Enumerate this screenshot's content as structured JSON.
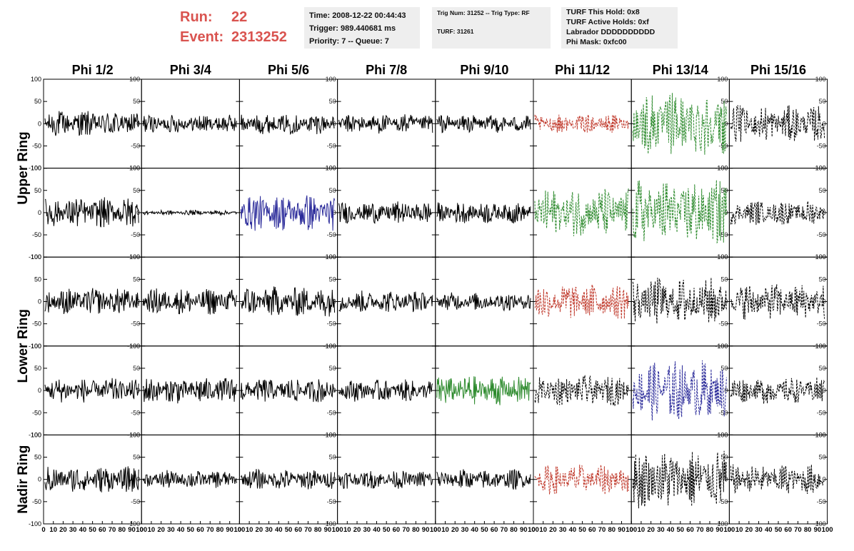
{
  "header": {
    "run_label": "Run:",
    "run_value": "22",
    "event_label": "Event:",
    "event_value": "2313252",
    "time_line": "Time: 2008-12-22 00:44:43",
    "trigger_line": "Trigger: 989.440681 ms",
    "priority_line": "Priority: 7 -- Queue: 7",
    "trig_line": "Trig Num: 31252 -- Trig Type: RF",
    "turf_line": "TURF: 31261",
    "turf_hold_line": "TURF This Hold: 0x8",
    "turf_active_line": "TURF Active Holds: 0xf",
    "labrador_line": "Labrador DDDDDDDDDD",
    "phi_mask_line": "Phi Mask: 0xfc00"
  },
  "colors": {
    "header_red": "#d9534f",
    "trace_black": "#000000",
    "trace_red": "#c0392b",
    "trace_green": "#2e8b2e",
    "trace_blue": "#2b2b9a",
    "panel_border": "#000000"
  },
  "chart_data": {
    "type": "line",
    "column_labels": [
      "Phi 1/2",
      "Phi 3/4",
      "Phi 5/6",
      "Phi 7/8",
      "Phi 9/10",
      "Phi 11/12",
      "Phi 13/14",
      "Phi 15/16"
    ],
    "row_group_labels": [
      "Upper Ring",
      "Lower Ring",
      "Nadir Ring"
    ],
    "rows": 5,
    "xlim": [
      0,
      100
    ],
    "ylim": [
      -100,
      100
    ],
    "x_ticks": [
      0,
      10,
      20,
      30,
      40,
      50,
      60,
      70,
      80,
      90,
      100
    ],
    "y_ticks": [
      -100,
      -50,
      0,
      50,
      100
    ],
    "panels": [
      [
        {
          "color": "black",
          "style": "solid",
          "amp": 22
        },
        {
          "color": "black",
          "style": "solid",
          "amp": 15
        },
        {
          "color": "black",
          "style": "solid",
          "amp": 17
        },
        {
          "color": "black",
          "style": "solid",
          "amp": 16
        },
        {
          "color": "black",
          "style": "solid",
          "amp": 15
        },
        {
          "color": "red",
          "style": "dashed",
          "amp": 15
        },
        {
          "color": "green",
          "style": "dashed",
          "amp": 55
        },
        {
          "color": "black",
          "style": "dashed",
          "amp": 30
        }
      ],
      [
        {
          "color": "black",
          "style": "solid",
          "amp": 25
        },
        {
          "color": "black",
          "style": "solid",
          "amp": 4
        },
        {
          "color": "blue",
          "style": "solid",
          "amp": 30
        },
        {
          "color": "black",
          "style": "solid",
          "amp": 18
        },
        {
          "color": "black",
          "style": "solid",
          "amp": 18
        },
        {
          "color": "green",
          "style": "dashed",
          "amp": 40
        },
        {
          "color": "green",
          "style": "dashed",
          "amp": 55
        },
        {
          "color": "black",
          "style": "dashed",
          "amp": 20
        }
      ],
      [
        {
          "color": "black",
          "style": "solid",
          "amp": 22
        },
        {
          "color": "black",
          "style": "solid",
          "amp": 22
        },
        {
          "color": "black",
          "style": "solid",
          "amp": 25
        },
        {
          "color": "black",
          "style": "solid",
          "amp": 18
        },
        {
          "color": "black",
          "style": "solid",
          "amp": 15
        },
        {
          "color": "red",
          "style": "dashed",
          "amp": 30
        },
        {
          "color": "black",
          "style": "dashed",
          "amp": 40
        },
        {
          "color": "black",
          "style": "dashed",
          "amp": 30
        }
      ],
      [
        {
          "color": "black",
          "style": "solid",
          "amp": 20
        },
        {
          "color": "black",
          "style": "solid",
          "amp": 22
        },
        {
          "color": "black",
          "style": "solid",
          "amp": 20
        },
        {
          "color": "black",
          "style": "solid",
          "amp": 18
        },
        {
          "color": "green",
          "style": "solid",
          "amp": 25
        },
        {
          "color": "black",
          "style": "dashed",
          "amp": 25
        },
        {
          "color": "blue",
          "style": "dashed",
          "amp": 50
        },
        {
          "color": "black",
          "style": "dashed",
          "amp": 22
        }
      ],
      [
        {
          "color": "black",
          "style": "solid",
          "amp": 22
        },
        {
          "color": "black",
          "style": "solid",
          "amp": 15
        },
        {
          "color": "black",
          "style": "solid",
          "amp": 17
        },
        {
          "color": "black",
          "style": "solid",
          "amp": 15
        },
        {
          "color": "black",
          "style": "solid",
          "amp": 17
        },
        {
          "color": "red",
          "style": "dashed",
          "amp": 25
        },
        {
          "color": "black",
          "style": "dashed",
          "amp": 50
        },
        {
          "color": "black",
          "style": "dashed",
          "amp": 25
        }
      ]
    ]
  }
}
